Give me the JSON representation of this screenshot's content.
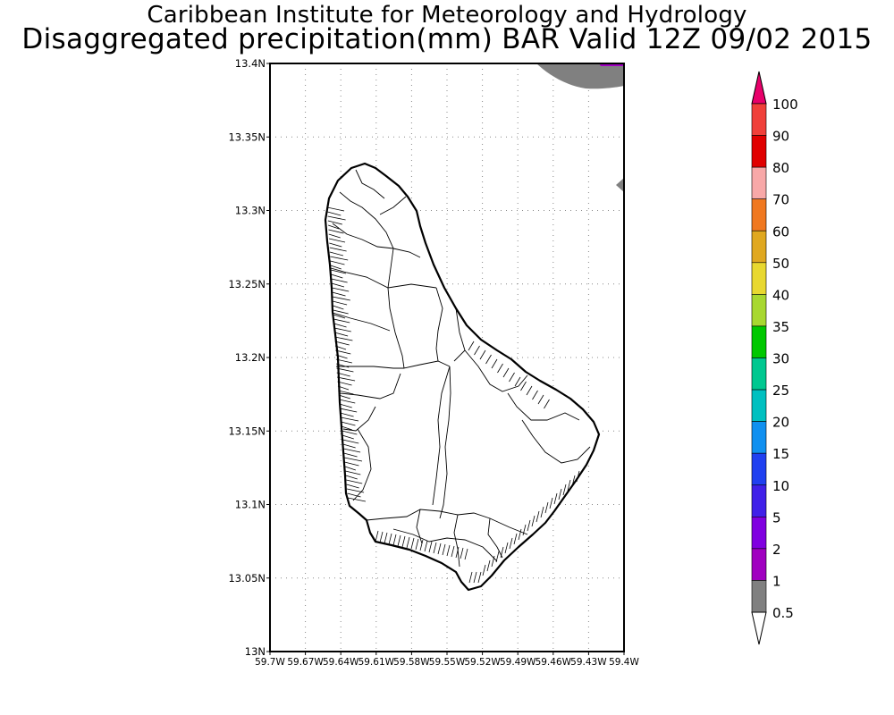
{
  "title_line1": "Caribbean Institute for Meteorology and Hydrology",
  "title_line2": "Disaggregated precipitation(mm) BAR Valid 12Z 09/02 2015",
  "map": {
    "y_ticks": [
      "13.4N",
      "13.35N",
      "13.3N",
      "13.25N",
      "13.2N",
      "13.15N",
      "13.1N",
      "13.05N",
      "13N"
    ],
    "x_ticks": [
      "59.7W",
      "59.67W",
      "59.64W",
      "59.61W",
      "59.58W",
      "59.55W",
      "59.52W",
      "59.49W",
      "59.46W",
      "59.43W",
      "59.4W"
    ],
    "land_fill": "#ffffff",
    "outline_color": "#000000",
    "grid": "dotted",
    "precip_areas": [
      {
        "location": "top-right corner",
        "category": "0.5-1",
        "color": "#808080"
      },
      {
        "location": "right edge near 13.32N",
        "category": "0.5-1",
        "color": "#808080"
      }
    ]
  },
  "legend": {
    "labels": [
      "100",
      "90",
      "80",
      "70",
      "60",
      "50",
      "40",
      "35",
      "30",
      "25",
      "20",
      "15",
      "10",
      "5",
      "2",
      "1",
      "0.5"
    ],
    "colors": [
      "#e8006a",
      "#f0403a",
      "#e00000",
      "#f8a8a8",
      "#f07820",
      "#e0a820",
      "#e8d830",
      "#a8d830",
      "#00c800",
      "#00c890",
      "#00c0c0",
      "#1090f0",
      "#2040f0",
      "#4020e8",
      "#8000e0",
      "#a000c0",
      "#808080",
      "#ffffff"
    ]
  }
}
